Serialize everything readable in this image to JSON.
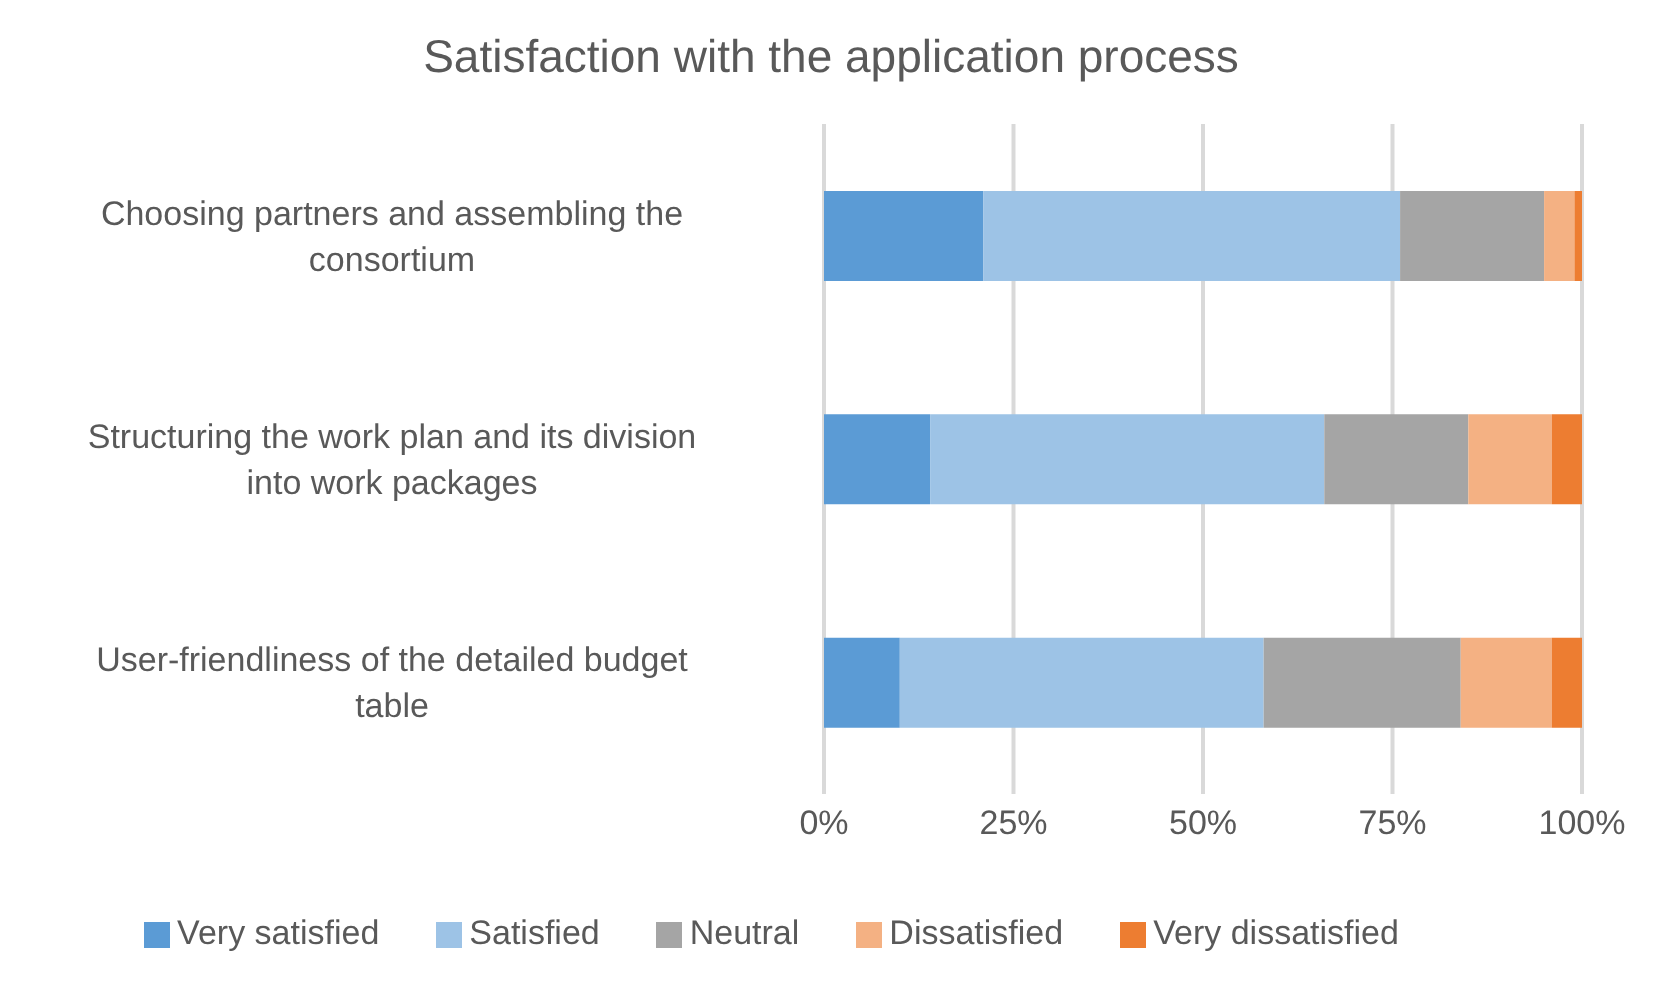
{
  "chart_data": {
    "type": "bar",
    "orientation": "horizontal",
    "stacked": true,
    "title": "Satisfaction with the application process",
    "categories": [
      "Choosing partners and assembling the consortium",
      "Structuring the work plan and its division into work packages",
      "User-friendliness of the detailed budget table"
    ],
    "series": [
      {
        "name": "Very satisfied",
        "color": "#5b9bd5",
        "values": [
          21,
          14,
          10
        ]
      },
      {
        "name": "Satisfied",
        "color": "#9dc3e6",
        "values": [
          55,
          52,
          48
        ]
      },
      {
        "name": "Neutral",
        "color": "#a5a5a5",
        "values": [
          19,
          19,
          26
        ]
      },
      {
        "name": "Dissatisfied",
        "color": "#f4b183",
        "values": [
          4,
          11,
          12
        ]
      },
      {
        "name": "Very dissatisfied",
        "color": "#ed7d31",
        "values": [
          1,
          4,
          4
        ]
      }
    ],
    "xlim": [
      0,
      100
    ],
    "xticks": [
      {
        "value": 0,
        "label": "0%"
      },
      {
        "value": 25,
        "label": "25%"
      },
      {
        "value": 50,
        "label": "50%"
      },
      {
        "value": 75,
        "label": "75%"
      },
      {
        "value": 100,
        "label": "100%"
      }
    ],
    "grid": "x",
    "legend": "bottom"
  }
}
